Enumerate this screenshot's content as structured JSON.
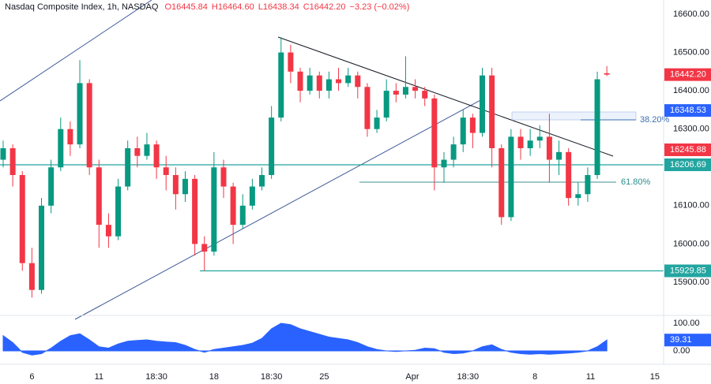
{
  "chart_data": {
    "type": "candlestick",
    "title": "Nasdaq Composite Index, 1h, NASDAQ",
    "ohlc_text": [
      "O16445.84",
      "H16464.60",
      "L16438.34",
      "C16442.20",
      "−3.23 (−0.02%)"
    ],
    "up_color": "#089981",
    "down_color": "#f23645",
    "open": [
      16220,
      16250,
      16180,
      15950,
      15880,
      16100,
      16200,
      16300,
      16260,
      16420,
      16200,
      16050,
      16020,
      16150,
      16250,
      16230,
      16260,
      16200,
      16180,
      16130,
      16170,
      16000,
      15980,
      16200,
      16150,
      16050,
      16100,
      16150,
      16180,
      16330,
      16500,
      16450,
      16400,
      16440,
      16400,
      16430,
      16420,
      16440,
      16410,
      16300,
      16330,
      16400,
      16390,
      16410,
      16400,
      16380,
      16200,
      16220,
      16260,
      16330,
      16290,
      16440,
      16250,
      16070,
      16280,
      16250,
      16270,
      16280,
      16220,
      16240,
      16120,
      16130,
      16180,
      16445.84
    ],
    "high": [
      16270,
      16260,
      16190,
      15990,
      16120,
      16220,
      16330,
      16320,
      16480,
      16430,
      16220,
      16080,
      16170,
      16270,
      16280,
      16290,
      16270,
      16230,
      16200,
      16190,
      16180,
      16020,
      16240,
      16220,
      16160,
      16130,
      16170,
      16200,
      16360,
      16540,
      16520,
      16460,
      16460,
      16450,
      16450,
      16460,
      16460,
      16450,
      16420,
      16350,
      16430,
      16420,
      16490,
      16430,
      16410,
      16390,
      16240,
      16280,
      16350,
      16340,
      16460,
      16460,
      16260,
      16300,
      16300,
      16300,
      16310,
      16340,
      16270,
      16250,
      16160,
      16200,
      16450,
      16464.6
    ],
    "low": [
      16200,
      16150,
      15930,
      15860,
      15870,
      16080,
      16190,
      16230,
      16250,
      16180,
      15990,
      15990,
      16010,
      16140,
      16200,
      16220,
      16170,
      16140,
      16090,
      16110,
      15970,
      15930,
      15970,
      16120,
      16000,
      16040,
      16090,
      16140,
      16170,
      16320,
      16420,
      16370,
      16390,
      16380,
      16380,
      16400,
      16410,
      16380,
      16280,
      16290,
      16320,
      16370,
      16380,
      16380,
      16360,
      16140,
      16160,
      16200,
      16240,
      16250,
      16280,
      16200,
      16050,
      16060,
      16220,
      16230,
      16250,
      16160,
      16180,
      16100,
      16100,
      16110,
      16170,
      16438.34
    ],
    "close": [
      16250,
      16180,
      15950,
      15880,
      16100,
      16200,
      16300,
      16260,
      16420,
      16200,
      16050,
      16020,
      16150,
      16250,
      16230,
      16260,
      16200,
      16180,
      16130,
      16170,
      16000,
      15980,
      16200,
      16150,
      16050,
      16100,
      16150,
      16180,
      16330,
      16500,
      16450,
      16400,
      16440,
      16400,
      16430,
      16420,
      16440,
      16410,
      16300,
      16330,
      16400,
      16390,
      16410,
      16400,
      16380,
      16200,
      16220,
      16260,
      16330,
      16290,
      16440,
      16250,
      16070,
      16280,
      16250,
      16270,
      16280,
      16220,
      16240,
      16120,
      16130,
      16180,
      16430,
      16442.2
    ],
    "xlim": [
      -0.33,
      68.92
    ],
    "xticks": [
      {
        "value": 3,
        "label": "6"
      },
      {
        "value": 10,
        "label": "11"
      },
      {
        "value": 16,
        "label": "18:30"
      },
      {
        "value": 22,
        "label": "18"
      },
      {
        "value": 28,
        "label": "18:30"
      },
      {
        "value": 33.5,
        "label": "25"
      },
      {
        "value": 42.7,
        "label": "Apr"
      },
      {
        "value": 48.5,
        "label": "18:30"
      },
      {
        "value": 55.5,
        "label": "8"
      },
      {
        "value": 61.3,
        "label": "11"
      },
      {
        "value": 68,
        "label": "15"
      }
    ],
    "ylim": [
      15813.5,
      16637
    ],
    "yticks": [
      {
        "value": 16600,
        "label": "16600.00"
      },
      {
        "value": 16500,
        "label": "16500.00"
      },
      {
        "value": 16400,
        "label": "16400.00"
      },
      {
        "value": 16300,
        "label": "16300.00"
      },
      {
        "value": 16200,
        "label": "16200.00"
      },
      {
        "value": 16100,
        "label": "16100.00"
      },
      {
        "value": 16000,
        "label": "16000.00"
      },
      {
        "value": 15900,
        "label": "15900.00"
      }
    ],
    "price_labels": [
      {
        "value": 16442.2,
        "label": "16442.20",
        "color": "#f23645"
      },
      {
        "value": 16348.53,
        "label": "16348.53",
        "color": "#2962ff"
      },
      {
        "value": 16245.88,
        "label": "16245.88",
        "color": "#f23645"
      },
      {
        "value": 16206.69,
        "label": "16206.69",
        "color": "#22a5a0"
      },
      {
        "value": 15929.85,
        "label": "15929.85",
        "color": "#22a5a0"
      }
    ],
    "annotations": [
      "38.20%",
      "61.80%"
    ],
    "oscillator": {
      "color": "#2962ff",
      "values": [
        55,
        30,
        -5,
        -15,
        -10,
        10,
        35,
        55,
        62,
        40,
        15,
        10,
        25,
        35,
        38,
        40,
        35,
        32,
        30,
        20,
        5,
        -5,
        5,
        10,
        15,
        20,
        28,
        45,
        80,
        100,
        95,
        80,
        70,
        60,
        50,
        45,
        40,
        30,
        15,
        5,
        0,
        -2,
        0,
        2,
        10,
        8,
        -5,
        -10,
        -8,
        0,
        15,
        22,
        5,
        -5,
        -10,
        -12,
        -10,
        -12,
        -10,
        -8,
        -5,
        0,
        15,
        39.31
      ],
      "value_labels": {
        "63": "39.31"
      },
      "y2lim": [
        -48.6,
        128.6
      ],
      "y2ticks": [
        {
          "value": 100,
          "label": "100.00"
        },
        {
          "value": 0,
          "label": "0.00"
        }
      ]
    }
  }
}
